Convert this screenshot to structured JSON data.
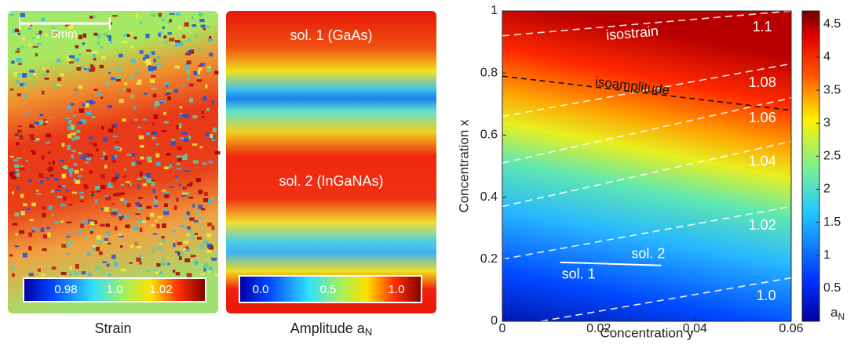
{
  "strain_panel": {
    "scale_bar": "5mm",
    "colorbar_labels": [
      "0.98",
      "1.0",
      "1.02"
    ],
    "caption": "Strain"
  },
  "amplitude_panel": {
    "labels": [
      "sol. 1 (GaAs)",
      "sol. 2 (InGaNAs)"
    ],
    "colorbar_labels": [
      "0.0",
      "0.5",
      "1.0"
    ],
    "caption": {
      "text": "Amplitude a",
      "sub": "N"
    }
  },
  "chart_data": {
    "type": "contour",
    "xlabel": "Concentration y",
    "ylabel": "Concentration x",
    "xlim": [
      0,
      0.06
    ],
    "ylim": [
      0,
      1
    ],
    "xticks": [
      0,
      0.02,
      0.04,
      0.06
    ],
    "yticks": [
      0,
      0.2,
      0.4,
      0.6,
      0.8,
      1
    ],
    "colorbar": {
      "lim": [
        0,
        4.7
      ],
      "ticks": [
        0.5,
        1,
        1.5,
        2,
        2.5,
        3,
        3.5,
        4,
        4.5
      ],
      "label": {
        "text": "a",
        "sub": "N"
      }
    },
    "contours": [
      {
        "label": "1.0",
        "points": [
          [
            0.008,
            0
          ],
          [
            0.06,
            0.14
          ]
        ]
      },
      {
        "label": "1.02",
        "points": [
          [
            0,
            0.2
          ],
          [
            0.06,
            0.37
          ]
        ]
      },
      {
        "label": "1.04",
        "points": [
          [
            0,
            0.37
          ],
          [
            0.06,
            0.58
          ]
        ]
      },
      {
        "label": "1.06",
        "points": [
          [
            0,
            0.51
          ],
          [
            0.06,
            0.72
          ]
        ]
      },
      {
        "label": "1.08",
        "points": [
          [
            0,
            0.66
          ],
          [
            0.06,
            0.83
          ]
        ]
      },
      {
        "label": "1.1",
        "annotation": "isostrain",
        "points": [
          [
            0,
            0.92
          ],
          [
            0.06,
            1
          ]
        ]
      }
    ],
    "isoamplitude": {
      "label": "isoamplitude",
      "points": [
        [
          0,
          0.79
        ],
        [
          0.06,
          0.68
        ]
      ]
    },
    "solutions": {
      "labels": [
        "sol. 1",
        "sol. 2"
      ],
      "points": [
        [
          0.012,
          0.19
        ],
        [
          0.033,
          0.18
        ]
      ]
    }
  }
}
